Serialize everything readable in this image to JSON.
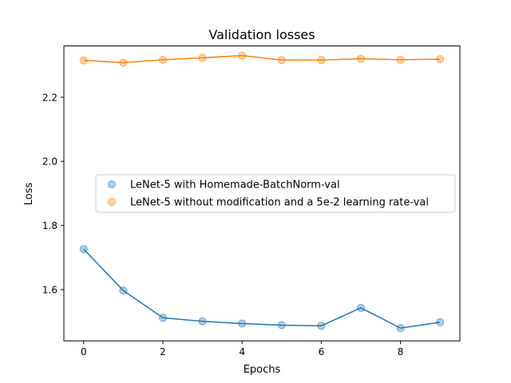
{
  "chart_data": {
    "type": "line",
    "title": "Validation losses",
    "xlabel": "Epochs",
    "ylabel": "Loss",
    "x": [
      0,
      1,
      2,
      3,
      4,
      5,
      6,
      7,
      8,
      9
    ],
    "xlim": [
      -0.5,
      9.5
    ],
    "ylim": [
      1.44,
      2.36
    ],
    "xticks": [
      0,
      2,
      4,
      6,
      8
    ],
    "yticks": [
      1.6,
      1.8,
      2.0,
      2.2
    ],
    "xtick_labels": [
      "0",
      "2",
      "4",
      "6",
      "8"
    ],
    "ytick_labels": [
      "1.6",
      "1.8",
      "2.0",
      "2.2"
    ],
    "grid": false,
    "legend_position": "center-right",
    "series": [
      {
        "name": "LeNet-5 with Homemade-BatchNorm-val",
        "color": "#1f77b4",
        "values": [
          1.726,
          1.597,
          1.512,
          1.501,
          1.494,
          1.489,
          1.487,
          1.543,
          1.48,
          1.498
        ]
      },
      {
        "name": "LeNet-5 without modification and a 5e-2 learning rate-val",
        "color": "#ff7f0e",
        "values": [
          2.315,
          2.308,
          2.317,
          2.323,
          2.33,
          2.316,
          2.316,
          2.32,
          2.317,
          2.319
        ]
      }
    ]
  }
}
